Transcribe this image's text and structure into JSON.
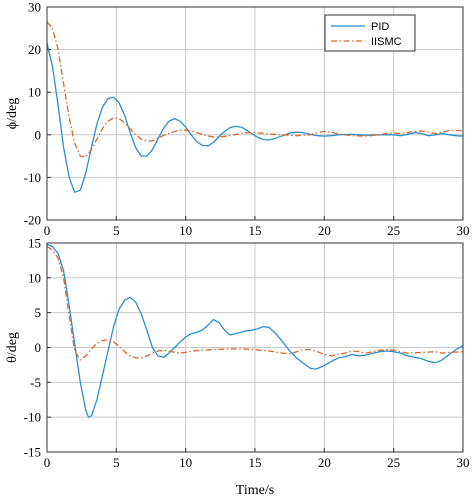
{
  "chart_data": [
    {
      "type": "line",
      "ylabel": "ϕ/deg",
      "xlabel": "",
      "xlim": [
        0,
        30
      ],
      "ylim": [
        -20,
        30
      ],
      "xticks": [
        "0",
        "5",
        "10",
        "15",
        "20",
        "25",
        "30"
      ],
      "yticks": [
        "-20",
        "-10",
        "0",
        "10",
        "20",
        "30"
      ],
      "grid": true,
      "legend_position": "top-right",
      "series": [
        {
          "name": "PID",
          "color": "#2a8fd0",
          "style": "solid",
          "points": [
            [
              0,
              21.5
            ],
            [
              0.4,
              16
            ],
            [
              0.8,
              7
            ],
            [
              1.2,
              -3
            ],
            [
              1.6,
              -10
            ],
            [
              2,
              -13.5
            ],
            [
              2.4,
              -13
            ],
            [
              2.8,
              -9
            ],
            [
              3.2,
              -3
            ],
            [
              3.6,
              2.5
            ],
            [
              4,
              6.5
            ],
            [
              4.4,
              8.5
            ],
            [
              4.8,
              8.8
            ],
            [
              5.2,
              7.5
            ],
            [
              5.6,
              4.5
            ],
            [
              6,
              0.5
            ],
            [
              6.4,
              -3
            ],
            [
              6.8,
              -5
            ],
            [
              7.2,
              -5
            ],
            [
              7.6,
              -3.5
            ],
            [
              8,
              -1
            ],
            [
              8.4,
              1.5
            ],
            [
              8.8,
              3.2
            ],
            [
              9.2,
              3.8
            ],
            [
              9.6,
              3.2
            ],
            [
              10,
              1.8
            ],
            [
              10.4,
              0
            ],
            [
              10.8,
              -1.6
            ],
            [
              11.2,
              -2.5
            ],
            [
              11.6,
              -2.6
            ],
            [
              12,
              -1.8
            ],
            [
              12.4,
              -0.5
            ],
            [
              12.8,
              0.8
            ],
            [
              13.2,
              1.7
            ],
            [
              13.6,
              2
            ],
            [
              14,
              1.8
            ],
            [
              14.4,
              1.1
            ],
            [
              14.8,
              0.2
            ],
            [
              15.2,
              -0.6
            ],
            [
              15.6,
              -1.1
            ],
            [
              16,
              -1.2
            ],
            [
              16.5,
              -0.8
            ],
            [
              17,
              -0.2
            ],
            [
              17.5,
              0.4
            ],
            [
              18,
              0.6
            ],
            [
              18.5,
              0.5
            ],
            [
              19,
              0.1
            ],
            [
              19.5,
              -0.2
            ],
            [
              20,
              -0.3
            ],
            [
              20.5,
              -0.2
            ],
            [
              21,
              0
            ],
            [
              21.5,
              0.1
            ],
            [
              22,
              0.1
            ],
            [
              22.5,
              0
            ],
            [
              23,
              -0.1
            ],
            [
              24,
              0
            ],
            [
              25,
              0
            ],
            [
              25.5,
              -0.2
            ],
            [
              26,
              0.1
            ],
            [
              26.5,
              0.5
            ],
            [
              27,
              0.3
            ],
            [
              27.5,
              -0.2
            ],
            [
              28,
              0
            ],
            [
              28.5,
              0.3
            ],
            [
              29,
              0
            ],
            [
              29.5,
              -0.2
            ],
            [
              30,
              -0.3
            ]
          ]
        },
        {
          "name": "IISMC",
          "color": "#d9662b",
          "style": "dashdot",
          "points": [
            [
              0,
              26.5
            ],
            [
              0.4,
              25
            ],
            [
              0.8,
              20
            ],
            [
              1.2,
              12
            ],
            [
              1.6,
              4
            ],
            [
              2,
              -2
            ],
            [
              2.4,
              -5
            ],
            [
              2.8,
              -5.2
            ],
            [
              3.2,
              -3.5
            ],
            [
              3.6,
              -1
            ],
            [
              4,
              1.5
            ],
            [
              4.4,
              3.2
            ],
            [
              4.8,
              4
            ],
            [
              5.2,
              3.8
            ],
            [
              5.6,
              2.8
            ],
            [
              6,
              1.4
            ],
            [
              6.4,
              0
            ],
            [
              6.8,
              -1
            ],
            [
              7.2,
              -1.5
            ],
            [
              7.6,
              -1.4
            ],
            [
              8,
              -0.8
            ],
            [
              8.5,
              0
            ],
            [
              9,
              0.6
            ],
            [
              9.5,
              1
            ],
            [
              10,
              1.1
            ],
            [
              10.5,
              0.8
            ],
            [
              11,
              0.3
            ],
            [
              11.5,
              -0.2
            ],
            [
              12,
              -0.5
            ],
            [
              12.5,
              -0.5
            ],
            [
              13,
              -0.3
            ],
            [
              13.5,
              0
            ],
            [
              14,
              0.3
            ],
            [
              14.5,
              0.5
            ],
            [
              15,
              0.5
            ],
            [
              15.5,
              0.4
            ],
            [
              16,
              0.2
            ],
            [
              17,
              0
            ],
            [
              18,
              -0.2
            ],
            [
              19,
              0
            ],
            [
              19.5,
              0.5
            ],
            [
              20,
              0.8
            ],
            [
              20.5,
              0.6
            ],
            [
              21,
              0.2
            ],
            [
              22,
              -0.2
            ],
            [
              23,
              -0.3
            ],
            [
              24,
              0
            ],
            [
              24.5,
              0.3
            ],
            [
              25,
              0.4
            ],
            [
              25.5,
              0.3
            ],
            [
              26,
              0.5
            ],
            [
              26.5,
              0.8
            ],
            [
              27,
              0.9
            ],
            [
              27.5,
              0.6
            ],
            [
              28,
              0.3
            ],
            [
              28.5,
              0.6
            ],
            [
              29,
              1
            ],
            [
              30,
              1
            ]
          ]
        }
      ]
    },
    {
      "type": "line",
      "ylabel": "θ/deg",
      "xlabel": "Time/s",
      "xlim": [
        0,
        30
      ],
      "ylim": [
        -15,
        15
      ],
      "xticks": [
        "0",
        "5",
        "10",
        "15",
        "20",
        "25",
        "30"
      ],
      "yticks": [
        "-15",
        "-10",
        "-5",
        "0",
        "5",
        "10",
        "15"
      ],
      "grid": true,
      "series": [
        {
          "name": "PID",
          "color": "#2a8fd0",
          "style": "solid",
          "points": [
            [
              0,
              14.8
            ],
            [
              0.4,
              14.5
            ],
            [
              0.8,
              13.5
            ],
            [
              1.2,
              11
            ],
            [
              1.6,
              6
            ],
            [
              2,
              0.5
            ],
            [
              2.4,
              -5
            ],
            [
              2.8,
              -9
            ],
            [
              3,
              -10
            ],
            [
              3.2,
              -9.8
            ],
            [
              3.6,
              -7.5
            ],
            [
              4,
              -4
            ],
            [
              4.4,
              -0.5
            ],
            [
              4.8,
              3
            ],
            [
              5.2,
              5.5
            ],
            [
              5.6,
              6.8
            ],
            [
              6,
              7.2
            ],
            [
              6.4,
              6.5
            ],
            [
              6.8,
              4.8
            ],
            [
              7.2,
              2.5
            ],
            [
              7.6,
              0
            ],
            [
              8,
              -1.2
            ],
            [
              8.4,
              -1.4
            ],
            [
              8.8,
              -0.8
            ],
            [
              9.2,
              0
            ],
            [
              9.6,
              0.8
            ],
            [
              10,
              1.5
            ],
            [
              10.4,
              2
            ],
            [
              10.8,
              2.2
            ],
            [
              11.2,
              2.5
            ],
            [
              11.6,
              3.2
            ],
            [
              12,
              4
            ],
            [
              12.4,
              3.6
            ],
            [
              12.8,
              2.5
            ],
            [
              13.2,
              1.8
            ],
            [
              13.6,
              2
            ],
            [
              14,
              2.2
            ],
            [
              14.4,
              2.4
            ],
            [
              14.8,
              2.5
            ],
            [
              15.2,
              2.7
            ],
            [
              15.6,
              3
            ],
            [
              16,
              2.9
            ],
            [
              16.5,
              2
            ],
            [
              17,
              0.8
            ],
            [
              17.5,
              -0.5
            ],
            [
              18,
              -1.5
            ],
            [
              18.5,
              -2.3
            ],
            [
              19,
              -3
            ],
            [
              19.4,
              -3.1
            ],
            [
              20,
              -2.6
            ],
            [
              20.5,
              -2
            ],
            [
              21,
              -1.5
            ],
            [
              21.5,
              -1.3
            ],
            [
              22,
              -1
            ],
            [
              22.5,
              -1.2
            ],
            [
              23,
              -1.1
            ],
            [
              23.5,
              -0.8
            ],
            [
              24,
              -0.6
            ],
            [
              24.5,
              -0.5
            ],
            [
              25,
              -0.6
            ],
            [
              25.5,
              -0.8
            ],
            [
              26,
              -1.2
            ],
            [
              26.5,
              -1.4
            ],
            [
              27,
              -1.6
            ],
            [
              27.5,
              -2
            ],
            [
              28,
              -2.2
            ],
            [
              28.5,
              -1.8
            ],
            [
              29,
              -1
            ],
            [
              29.5,
              -0.3
            ],
            [
              30,
              0.3
            ]
          ]
        },
        {
          "name": "IISMC",
          "color": "#d9662b",
          "style": "dashdot",
          "points": [
            [
              0,
              14.5
            ],
            [
              0.4,
              14
            ],
            [
              0.8,
              12.8
            ],
            [
              1.2,
              10
            ],
            [
              1.6,
              4.5
            ],
            [
              2,
              -0.5
            ],
            [
              2.4,
              -1.8
            ],
            [
              2.8,
              -1.2
            ],
            [
              3.2,
              -0.2
            ],
            [
              3.6,
              0.6
            ],
            [
              4,
              1
            ],
            [
              4.4,
              1.1
            ],
            [
              4.8,
              0.8
            ],
            [
              5.2,
              0.2
            ],
            [
              5.6,
              -0.6
            ],
            [
              6,
              -1.2
            ],
            [
              6.4,
              -1.5
            ],
            [
              6.8,
              -1.5
            ],
            [
              7.2,
              -1.2
            ],
            [
              7.6,
              -0.8
            ],
            [
              8,
              -0.5
            ],
            [
              8.5,
              -0.4
            ],
            [
              9,
              -0.6
            ],
            [
              9.5,
              -0.8
            ],
            [
              10,
              -0.7
            ],
            [
              10.5,
              -0.5
            ],
            [
              11,
              -0.4
            ],
            [
              12,
              -0.3
            ],
            [
              13,
              -0.2
            ],
            [
              14,
              -0.2
            ],
            [
              15,
              -0.3
            ],
            [
              16,
              -0.5
            ],
            [
              17,
              -0.8
            ],
            [
              17.5,
              -0.9
            ],
            [
              18,
              -0.6
            ],
            [
              18.5,
              -0.3
            ],
            [
              19,
              -0.3
            ],
            [
              19.5,
              -0.6
            ],
            [
              20,
              -1
            ],
            [
              20.5,
              -1.2
            ],
            [
              21,
              -1
            ],
            [
              21.5,
              -0.8
            ],
            [
              22,
              -0.5
            ],
            [
              22.5,
              -0.6
            ],
            [
              23,
              -0.8
            ],
            [
              23.5,
              -0.6
            ],
            [
              24,
              -0.4
            ],
            [
              24.5,
              -0.3
            ],
            [
              25,
              -0.4
            ],
            [
              25.5,
              -0.6
            ],
            [
              26,
              -0.8
            ],
            [
              27,
              -0.7
            ],
            [
              28,
              -0.6
            ],
            [
              28.5,
              -0.8
            ],
            [
              29,
              -0.7
            ],
            [
              30,
              -0.6
            ]
          ]
        }
      ]
    }
  ]
}
